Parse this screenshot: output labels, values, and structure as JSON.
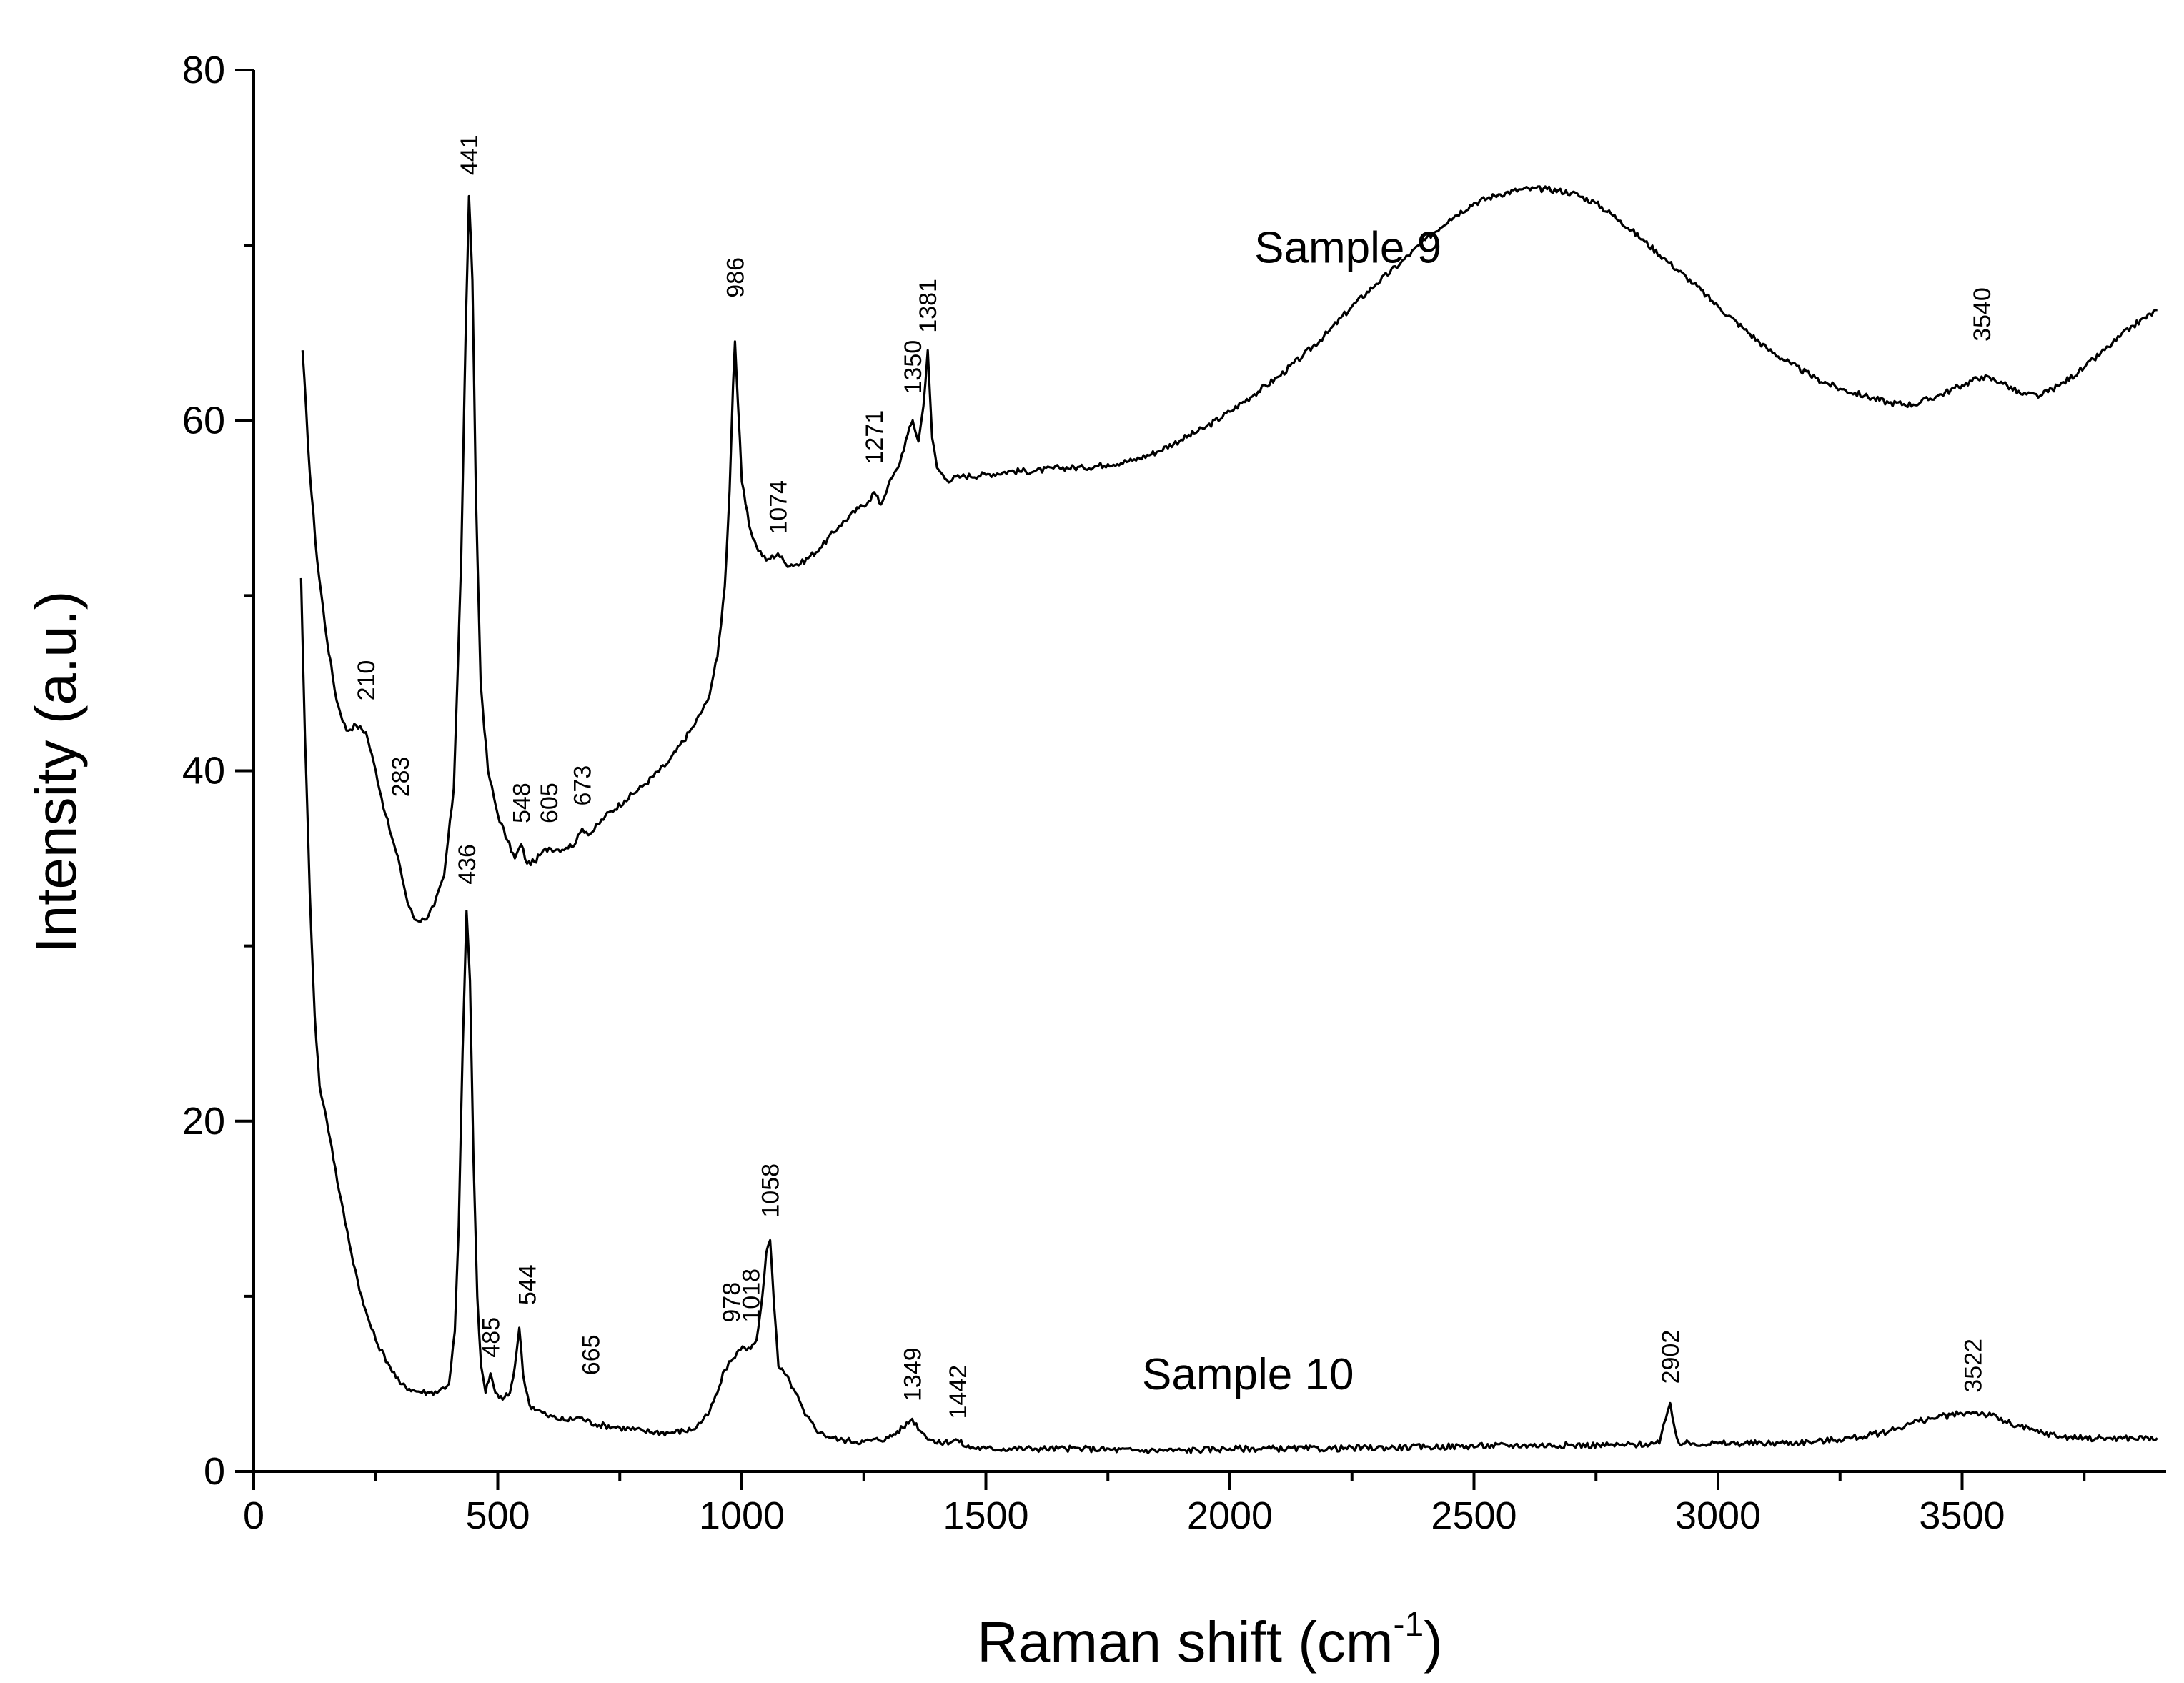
{
  "chart_data": {
    "type": "line",
    "title": "",
    "xlabel": "Raman shift (cm",
    "xlabel_sup": "-1",
    "xlabel_close": ")",
    "ylabel": "Intensity (a.u.)",
    "xlim": [
      0,
      3900
    ],
    "ylim": [
      0,
      80
    ],
    "x_major_ticks": [
      0,
      500,
      1000,
      1500,
      2000,
      2500,
      3000,
      3500
    ],
    "x_tick_labels": [
      "0",
      "500",
      "1000",
      "1500",
      "2000",
      "2500",
      "3000",
      "3500"
    ],
    "x_minor_step": 250,
    "y_major_ticks": [
      0,
      20,
      40,
      60,
      80
    ],
    "y_tick_labels": [
      "0",
      "20",
      "40",
      "60",
      "80"
    ],
    "y_minor_step": 10,
    "grid": false,
    "series": [
      {
        "name": "Sample 9",
        "label_pos": [
          2050,
          69
        ],
        "points": [
          [
            100,
            64
          ],
          [
            115,
            57
          ],
          [
            130,
            52
          ],
          [
            150,
            47.5
          ],
          [
            170,
            44
          ],
          [
            190,
            42.3
          ],
          [
            210,
            42.6
          ],
          [
            230,
            42.2
          ],
          [
            250,
            40
          ],
          [
            270,
            37.5
          ],
          [
            283,
            36.2
          ],
          [
            300,
            34.5
          ],
          [
            315,
            32.5
          ],
          [
            330,
            31.5
          ],
          [
            350,
            31.5
          ],
          [
            370,
            32.3
          ],
          [
            390,
            34
          ],
          [
            410,
            39
          ],
          [
            425,
            52
          ],
          [
            435,
            66
          ],
          [
            441,
            72.8
          ],
          [
            448,
            68
          ],
          [
            455,
            56
          ],
          [
            465,
            45
          ],
          [
            480,
            40
          ],
          [
            500,
            37.5
          ],
          [
            520,
            36
          ],
          [
            535,
            35
          ],
          [
            548,
            35.8
          ],
          [
            560,
            34.7
          ],
          [
            575,
            34.8
          ],
          [
            590,
            35.3
          ],
          [
            605,
            35.6
          ],
          [
            620,
            35.5
          ],
          [
            640,
            35.6
          ],
          [
            660,
            35.9
          ],
          [
            673,
            36.7
          ],
          [
            690,
            36.4
          ],
          [
            720,
            37.4
          ],
          [
            760,
            38.3
          ],
          [
            800,
            39.2
          ],
          [
            850,
            40.5
          ],
          [
            900,
            42.5
          ],
          [
            930,
            44
          ],
          [
            950,
            46.5
          ],
          [
            965,
            50.5
          ],
          [
            975,
            56
          ],
          [
            982,
            62
          ],
          [
            986,
            64.5
          ],
          [
            992,
            61
          ],
          [
            1000,
            56.5
          ],
          [
            1015,
            54
          ],
          [
            1030,
            52.8
          ],
          [
            1050,
            52
          ],
          [
            1074,
            52.4
          ],
          [
            1090,
            51.8
          ],
          [
            1120,
            51.8
          ],
          [
            1160,
            52.7
          ],
          [
            1200,
            54
          ],
          [
            1240,
            55
          ],
          [
            1260,
            55.4
          ],
          [
            1271,
            55.9
          ],
          [
            1285,
            55.2
          ],
          [
            1300,
            56.3
          ],
          [
            1320,
            57.3
          ],
          [
            1340,
            59.2
          ],
          [
            1350,
            60
          ],
          [
            1362,
            58.8
          ],
          [
            1372,
            60.8
          ],
          [
            1381,
            64
          ],
          [
            1390,
            59
          ],
          [
            1400,
            57.3
          ],
          [
            1420,
            56.6
          ],
          [
            1450,
            56.8
          ],
          [
            1500,
            56.9
          ],
          [
            1550,
            57.1
          ],
          [
            1600,
            57.1
          ],
          [
            1650,
            57.3
          ],
          [
            1700,
            57.3
          ],
          [
            1750,
            57.5
          ],
          [
            1800,
            57.7
          ],
          [
            1850,
            58.2
          ],
          [
            1900,
            58.9
          ],
          [
            1950,
            59.6
          ],
          [
            2000,
            60.5
          ],
          [
            2050,
            61.5
          ],
          [
            2100,
            62.5
          ],
          [
            2150,
            63.7
          ],
          [
            2200,
            65
          ],
          [
            2250,
            66.5
          ],
          [
            2300,
            67.8
          ],
          [
            2350,
            69
          ],
          [
            2400,
            70.3
          ],
          [
            2450,
            71.5
          ],
          [
            2500,
            72.4
          ],
          [
            2550,
            72.9
          ],
          [
            2600,
            73.2
          ],
          [
            2650,
            73.2
          ],
          [
            2700,
            73
          ],
          [
            2750,
            72.4
          ],
          [
            2800,
            71.4
          ],
          [
            2850,
            70.2
          ],
          [
            2900,
            69
          ],
          [
            2950,
            67.8
          ],
          [
            3000,
            66.5
          ],
          [
            3050,
            65.3
          ],
          [
            3100,
            64.1
          ],
          [
            3150,
            63.2
          ],
          [
            3200,
            62.4
          ],
          [
            3250,
            61.8
          ],
          [
            3300,
            61.4
          ],
          [
            3350,
            61
          ],
          [
            3400,
            60.9
          ],
          [
            3450,
            61.4
          ],
          [
            3500,
            62
          ],
          [
            3540,
            62.5
          ],
          [
            3580,
            62.2
          ],
          [
            3620,
            61.5
          ],
          [
            3660,
            61.4
          ],
          [
            3700,
            62
          ],
          [
            3750,
            63
          ],
          [
            3800,
            64.2
          ],
          [
            3850,
            65.4
          ],
          [
            3900,
            66.3
          ]
        ]
      },
      {
        "name": "Sample 10",
        "label_pos": [
          1820,
          4.7
        ],
        "points": [
          [
            97,
            51
          ],
          [
            105,
            42
          ],
          [
            115,
            33
          ],
          [
            125,
            26
          ],
          [
            135,
            22
          ],
          [
            150,
            20
          ],
          [
            160,
            18.5
          ],
          [
            175,
            16
          ],
          [
            200,
            12.5
          ],
          [
            225,
            9.5
          ],
          [
            250,
            7.5
          ],
          [
            275,
            6.2
          ],
          [
            300,
            5
          ],
          [
            330,
            4.6
          ],
          [
            360,
            4.5
          ],
          [
            380,
            4.6
          ],
          [
            400,
            5
          ],
          [
            412,
            8
          ],
          [
            420,
            14
          ],
          [
            428,
            24
          ],
          [
            436,
            32
          ],
          [
            443,
            28
          ],
          [
            450,
            18
          ],
          [
            458,
            10
          ],
          [
            466,
            6
          ],
          [
            475,
            4.5
          ],
          [
            485,
            5.6
          ],
          [
            495,
            4.5
          ],
          [
            510,
            4.1
          ],
          [
            525,
            4.5
          ],
          [
            535,
            6
          ],
          [
            544,
            8.2
          ],
          [
            552,
            5.5
          ],
          [
            565,
            3.8
          ],
          [
            600,
            3.2
          ],
          [
            640,
            2.9
          ],
          [
            665,
            3.1
          ],
          [
            700,
            2.7
          ],
          [
            750,
            2.5
          ],
          [
            800,
            2.3
          ],
          [
            850,
            2.2
          ],
          [
            900,
            2.4
          ],
          [
            930,
            3.2
          ],
          [
            950,
            4.5
          ],
          [
            965,
            5.8
          ],
          [
            978,
            6.3
          ],
          [
            990,
            6.8
          ],
          [
            1005,
            7.1
          ],
          [
            1018,
            7
          ],
          [
            1030,
            7.5
          ],
          [
            1042,
            10
          ],
          [
            1050,
            12.5
          ],
          [
            1058,
            13.2
          ],
          [
            1066,
            9.5
          ],
          [
            1075,
            6
          ],
          [
            1090,
            5.5
          ],
          [
            1110,
            4.5
          ],
          [
            1130,
            3.2
          ],
          [
            1160,
            2.2
          ],
          [
            1200,
            1.8
          ],
          [
            1250,
            1.7
          ],
          [
            1300,
            1.9
          ],
          [
            1330,
            2.5
          ],
          [
            1349,
            3
          ],
          [
            1370,
            2.2
          ],
          [
            1400,
            1.6
          ],
          [
            1442,
            1.8
          ],
          [
            1460,
            1.4
          ],
          [
            1500,
            1.3
          ],
          [
            1600,
            1.3
          ],
          [
            1700,
            1.3
          ],
          [
            1800,
            1.2
          ],
          [
            1900,
            1.2
          ],
          [
            2000,
            1.3
          ],
          [
            2200,
            1.3
          ],
          [
            2400,
            1.4
          ],
          [
            2600,
            1.5
          ],
          [
            2800,
            1.5
          ],
          [
            2880,
            1.6
          ],
          [
            2893,
            3
          ],
          [
            2902,
            3.9
          ],
          [
            2911,
            2.5
          ],
          [
            2920,
            1.6
          ],
          [
            3000,
            1.6
          ],
          [
            3100,
            1.6
          ],
          [
            3200,
            1.7
          ],
          [
            3300,
            2
          ],
          [
            3350,
            2.3
          ],
          [
            3400,
            2.8
          ],
          [
            3450,
            3.1
          ],
          [
            3500,
            3.3
          ],
          [
            3522,
            3.4
          ],
          [
            3560,
            3.2
          ],
          [
            3600,
            2.7
          ],
          [
            3650,
            2.3
          ],
          [
            3700,
            2
          ],
          [
            3750,
            1.9
          ],
          [
            3800,
            1.9
          ],
          [
            3900,
            1.9
          ]
        ]
      }
    ],
    "annotations": [
      {
        "text": "441",
        "x": 441,
        "y": 74
      },
      {
        "text": "986",
        "x": 986,
        "y": 67
      },
      {
        "text": "1074",
        "x": 1074,
        "y": 53.5
      },
      {
        "text": "1271",
        "x": 1271,
        "y": 57.5
      },
      {
        "text": "1350",
        "x": 1350,
        "y": 61.5
      },
      {
        "text": "1381",
        "x": 1381,
        "y": 65
      },
      {
        "text": "3540",
        "x": 3540,
        "y": 64.5
      },
      {
        "text": "210",
        "x": 230,
        "y": 44
      },
      {
        "text": "283",
        "x": 300,
        "y": 38.5
      },
      {
        "text": "548",
        "x": 548,
        "y": 37
      },
      {
        "text": "605",
        "x": 605,
        "y": 37
      },
      {
        "text": "673",
        "x": 673,
        "y": 38
      },
      {
        "text": "436",
        "x": 436,
        "y": 33.5
      },
      {
        "text": "485",
        "x": 485,
        "y": 6.5
      },
      {
        "text": "544",
        "x": 560,
        "y": 9.5
      },
      {
        "text": "665",
        "x": 690,
        "y": 5.5
      },
      {
        "text": "978",
        "x": 978,
        "y": 8.5
      },
      {
        "text": "1018",
        "x": 1018,
        "y": 8.5
      },
      {
        "text": "1058",
        "x": 1058,
        "y": 14.5
      },
      {
        "text": "1349",
        "x": 1349,
        "y": 4
      },
      {
        "text": "1442",
        "x": 1442,
        "y": 3
      },
      {
        "text": "2902",
        "x": 2902,
        "y": 5
      },
      {
        "text": "3522",
        "x": 3522,
        "y": 4.5
      }
    ]
  }
}
